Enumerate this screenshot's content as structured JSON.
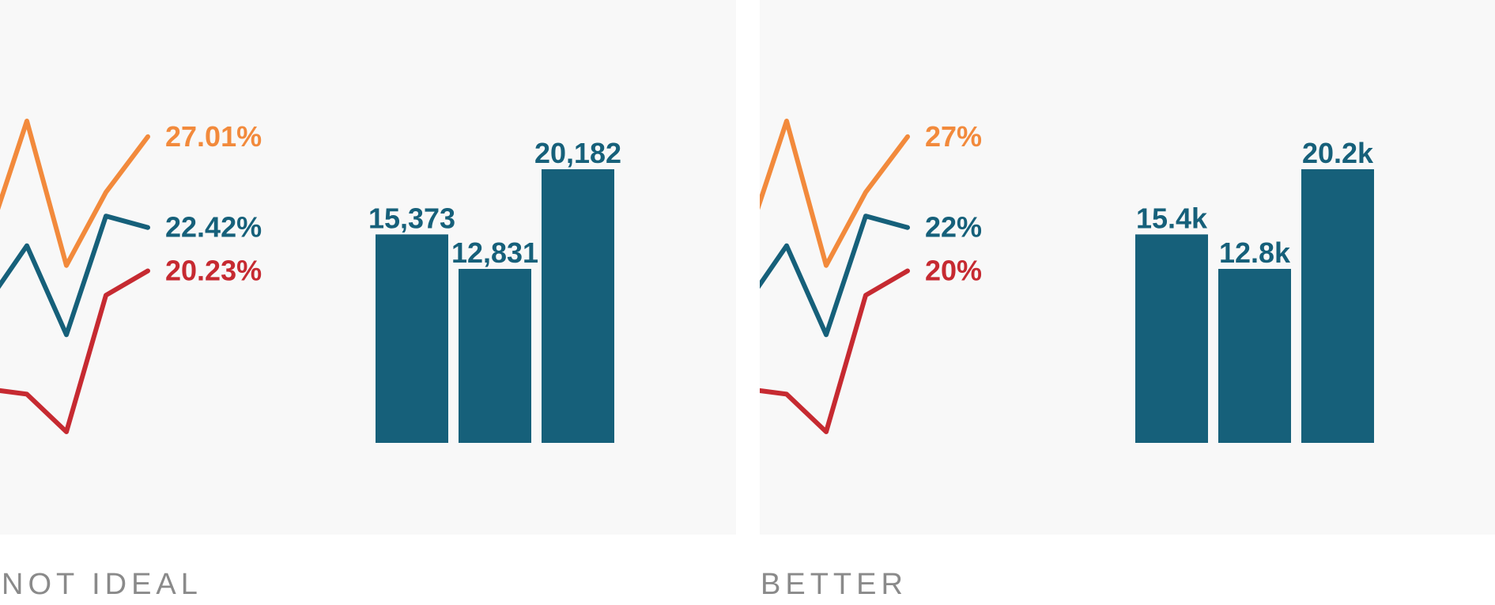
{
  "colors": {
    "orange": "#f28a3c",
    "teal": "#16607a",
    "red": "#c62a31",
    "panel_bg": "#f8f8f8",
    "caption": "#8a8a8a"
  },
  "captions": {
    "left": "NOT IDEAL",
    "right": "BETTER"
  },
  "chart_data": [
    {
      "type": "line",
      "panel": "left",
      "x": [
        1,
        2,
        3,
        4,
        5
      ],
      "series": [
        {
          "color": "orange",
          "values": [
            23.2,
            27.8,
            20.5,
            24.2,
            27.01
          ],
          "end_label": "27.01%"
        },
        {
          "color": "teal",
          "values": [
            19.3,
            21.5,
            17.0,
            23.0,
            22.42
          ],
          "end_label": "22.42%"
        },
        {
          "color": "red",
          "values": [
            14.2,
            14.0,
            12.1,
            19.0,
            20.23
          ],
          "end_label": "20.23%"
        }
      ]
    },
    {
      "type": "bar",
      "panel": "left",
      "values": [
        15373,
        12831,
        20182
      ],
      "data_labels": [
        "15,373",
        "12,831",
        "20,182"
      ],
      "ylim": [
        0,
        20182
      ]
    },
    {
      "type": "line",
      "panel": "right",
      "x": [
        1,
        2,
        3,
        4,
        5
      ],
      "series": [
        {
          "color": "orange",
          "values": [
            23.2,
            27.8,
            20.5,
            24.2,
            27.01
          ],
          "end_label": "27%"
        },
        {
          "color": "teal",
          "values": [
            19.3,
            21.5,
            17.0,
            23.0,
            22.42
          ],
          "end_label": "22%"
        },
        {
          "color": "red",
          "values": [
            14.2,
            14.0,
            12.1,
            19.0,
            20.23
          ],
          "end_label": "20%"
        }
      ]
    },
    {
      "type": "bar",
      "panel": "right",
      "values": [
        15373,
        12831,
        20182
      ],
      "data_labels": [
        "15.4k",
        "12.8k",
        "20.2k"
      ],
      "ylim": [
        0,
        20182
      ]
    }
  ]
}
